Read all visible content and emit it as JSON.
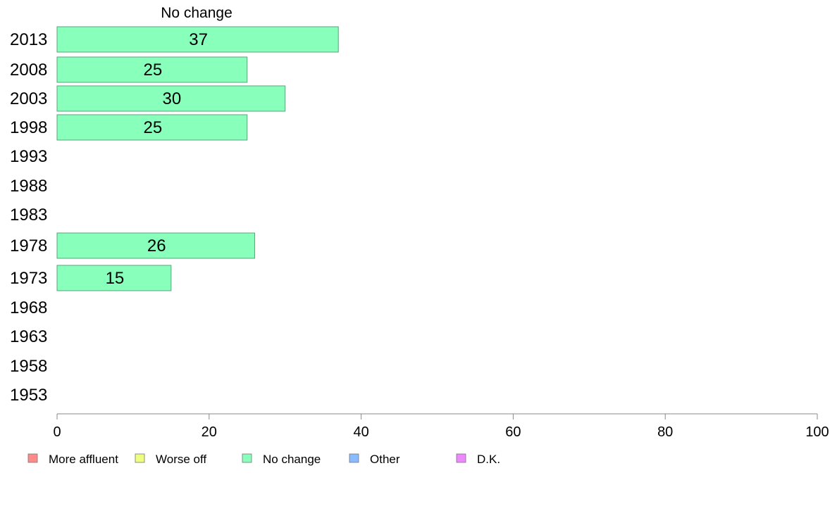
{
  "chart_data": {
    "type": "bar",
    "orientation": "horizontal",
    "title": "No change",
    "categories": [
      "2013",
      "2008",
      "2003",
      "1998",
      "1993",
      "1988",
      "1983",
      "1978",
      "1973",
      "1968",
      "1963",
      "1958",
      "1953"
    ],
    "series": [
      {
        "name": "No change",
        "values": [
          37,
          25,
          30,
          25,
          null,
          null,
          null,
          26,
          15,
          null,
          null,
          null,
          null
        ]
      }
    ],
    "bar_labels": [
      "37",
      "25",
      "30",
      "25",
      "",
      "",
      "",
      "26",
      "15",
      "",
      "",
      "",
      ""
    ],
    "xlim": [
      0,
      100
    ],
    "xticks": [
      0,
      20,
      40,
      60,
      80,
      100
    ],
    "xtick_labels": [
      "0",
      "20",
      "40",
      "60",
      "80",
      "100"
    ],
    "grid": false,
    "legend_position": "bottom",
    "legend": [
      {
        "label": "More affluent",
        "color": "#ff8a8a"
      },
      {
        "label": "Worse off",
        "color": "#eeff80"
      },
      {
        "label": "No change",
        "color": "#88ffbb"
      },
      {
        "label": "Other",
        "color": "#88bbff"
      },
      {
        "label": "D.K.",
        "color": "#ee88ff"
      }
    ],
    "bar_color": "#88ffbb",
    "bar_border_color": "#5aa37a"
  }
}
